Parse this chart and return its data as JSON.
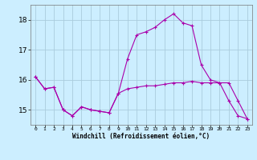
{
  "xlabel": "Windchill (Refroidissement éolien,°C)",
  "background_color": "#cceeff",
  "grid_color": "#aaccdd",
  "line_color": "#aa00aa",
  "x_hours": [
    0,
    1,
    2,
    3,
    4,
    5,
    6,
    7,
    8,
    9,
    10,
    11,
    12,
    13,
    14,
    15,
    16,
    17,
    18,
    19,
    20,
    21,
    22,
    23
  ],
  "series1": [
    16.1,
    15.7,
    15.75,
    15.0,
    14.8,
    15.1,
    15.0,
    14.95,
    14.9,
    15.55,
    15.7,
    15.75,
    15.8,
    15.8,
    15.85,
    15.9,
    15.9,
    15.95,
    15.9,
    15.9,
    15.9,
    15.3,
    14.8,
    14.7
  ],
  "series2": [
    16.1,
    15.7,
    15.75,
    15.0,
    14.8,
    15.1,
    15.0,
    14.95,
    14.9,
    15.55,
    16.7,
    17.5,
    17.6,
    17.75,
    18.0,
    18.2,
    17.9,
    17.8,
    16.5,
    16.0,
    15.9,
    15.9,
    15.3,
    14.7
  ],
  "ylim": [
    14.5,
    18.5
  ],
  "yticks": [
    15,
    16,
    17,
    18
  ],
  "xlim": [
    -0.5,
    23.5
  ]
}
